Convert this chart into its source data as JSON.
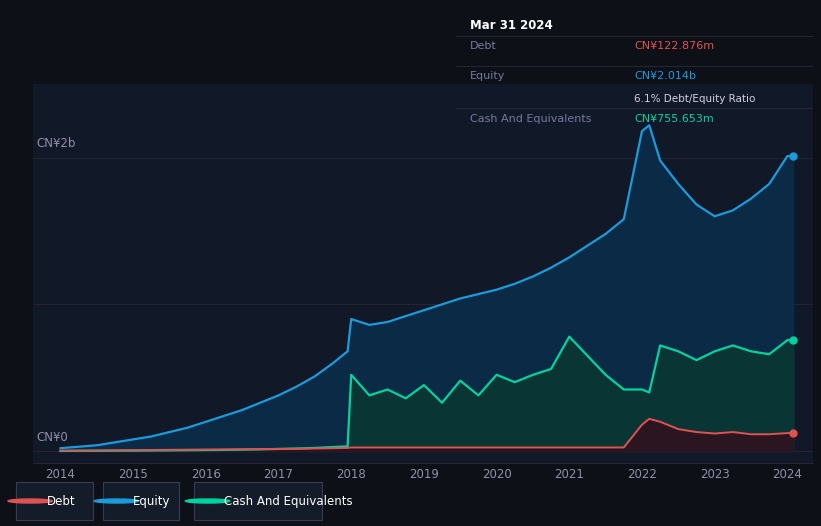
{
  "background_color": "#0d1117",
  "plot_bg_color": "#111827",
  "equity_color": "#1a9bdc",
  "debt_color": "#e05252",
  "cash_color": "#00d4a0",
  "equity_fill": "#0a2a45",
  "cash_fill": "#0a3535",
  "debt_fill": "#2a1520",
  "grid_color": "#252535",
  "text_color": "#9090a8",
  "tooltip_bg": "#080c12",
  "tooltip_border": "#2a2a3a",
  "legend_box_color": "#141c2a",
  "years": [
    2014.0,
    2014.25,
    2014.5,
    2014.75,
    2015.0,
    2015.25,
    2015.5,
    2015.75,
    2016.0,
    2016.25,
    2016.5,
    2016.75,
    2017.0,
    2017.25,
    2017.5,
    2017.75,
    2017.95,
    2018.0,
    2018.25,
    2018.5,
    2018.75,
    2019.0,
    2019.25,
    2019.5,
    2019.75,
    2020.0,
    2020.25,
    2020.5,
    2020.75,
    2021.0,
    2021.25,
    2021.5,
    2021.75,
    2022.0,
    2022.1,
    2022.25,
    2022.5,
    2022.75,
    2023.0,
    2023.25,
    2023.5,
    2023.75,
    2024.0,
    2024.08
  ],
  "equity": [
    0.02,
    0.03,
    0.04,
    0.06,
    0.08,
    0.1,
    0.13,
    0.16,
    0.2,
    0.24,
    0.28,
    0.33,
    0.38,
    0.44,
    0.51,
    0.6,
    0.68,
    0.9,
    0.86,
    0.88,
    0.92,
    0.96,
    1.0,
    1.04,
    1.07,
    1.1,
    1.14,
    1.19,
    1.25,
    1.32,
    1.4,
    1.48,
    1.58,
    2.18,
    2.22,
    1.98,
    1.82,
    1.68,
    1.6,
    1.64,
    1.72,
    1.82,
    2.01,
    2.01
  ],
  "debt": [
    0.003,
    0.004,
    0.005,
    0.006,
    0.007,
    0.008,
    0.009,
    0.01,
    0.011,
    0.012,
    0.013,
    0.014,
    0.015,
    0.016,
    0.018,
    0.02,
    0.022,
    0.025,
    0.025,
    0.025,
    0.025,
    0.025,
    0.025,
    0.025,
    0.025,
    0.025,
    0.025,
    0.025,
    0.025,
    0.025,
    0.025,
    0.025,
    0.025,
    0.18,
    0.22,
    0.2,
    0.15,
    0.13,
    0.12,
    0.13,
    0.115,
    0.115,
    0.123,
    0.123
  ],
  "cash": [
    0.001,
    0.002,
    0.002,
    0.003,
    0.003,
    0.004,
    0.005,
    0.006,
    0.007,
    0.008,
    0.01,
    0.012,
    0.015,
    0.018,
    0.022,
    0.028,
    0.032,
    0.52,
    0.38,
    0.42,
    0.36,
    0.45,
    0.33,
    0.48,
    0.38,
    0.52,
    0.47,
    0.52,
    0.56,
    0.78,
    0.65,
    0.52,
    0.42,
    0.42,
    0.4,
    0.72,
    0.68,
    0.62,
    0.68,
    0.72,
    0.68,
    0.66,
    0.756,
    0.756
  ],
  "ylim_max": 2.5,
  "ylim_min": -0.08,
  "xlim_min": 2013.62,
  "xlim_max": 2024.35,
  "ylabel_top": "CN¥2b",
  "ylabel_bottom": "CN¥0",
  "xlabel_ticks": [
    2014,
    2015,
    2016,
    2017,
    2018,
    2019,
    2020,
    2021,
    2022,
    2023,
    2024
  ],
  "xlabel_labels": [
    "2014",
    "2015",
    "2016",
    "2017",
    "2018",
    "2019",
    "2020",
    "2021",
    "2022",
    "2023",
    "2024"
  ],
  "debt_label": "Debt",
  "equity_label": "Equity",
  "cash_label": "Cash And Equivalents",
  "tooltip_title": "Mar 31 2024",
  "tooltip_debt_label": "Debt",
  "tooltip_debt_val": "CN¥122.876m",
  "tooltip_equity_label": "Equity",
  "tooltip_equity_val": "CN¥2.014b",
  "tooltip_ratio": "6.1% Debt/Equity Ratio",
  "tooltip_cash_label": "Cash And Equivalents",
  "tooltip_cash_val": "CN¥755.653m"
}
